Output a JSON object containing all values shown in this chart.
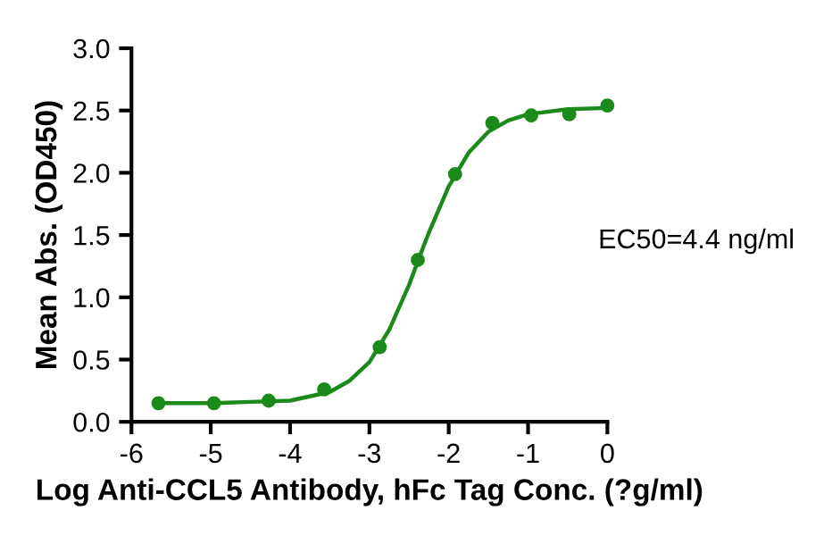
{
  "chart_data": {
    "type": "scatter",
    "xlabel": "Log Anti-CCL5 Antibody, hFc Tag Conc. (?g/ml)",
    "ylabel": "Mean Abs. (OD450)",
    "annotations": [
      "EC50=4.4 ng/ml"
    ],
    "series": [
      {
        "color": "#1b8a1b",
        "marker": "circle",
        "x": [
          -5.66,
          -4.96,
          -4.27,
          -3.57,
          -2.87,
          -2.39,
          -1.92,
          -1.45,
          -0.96,
          -0.48,
          0
        ],
        "values": [
          0.15,
          0.15,
          0.17,
          0.26,
          0.6,
          1.3,
          1.99,
          2.4,
          2.46,
          2.47,
          2.54
        ]
      },
      {
        "type": "line",
        "color": "#1b8a1b",
        "line_style": "solid",
        "x": [
          -5.66,
          -5,
          -4.5,
          -4,
          -3.5,
          -3.25,
          -3,
          -2.75,
          -2.5,
          -2.36,
          -2.25,
          -2,
          -1.75,
          -1.5,
          -1.25,
          -1,
          -0.5,
          0
        ],
        "values": [
          0.15,
          0.15,
          0.16,
          0.17,
          0.24,
          0.33,
          0.48,
          0.74,
          1.1,
          1.34,
          1.52,
          1.89,
          2.16,
          2.33,
          2.42,
          2.47,
          2.51,
          2.52
        ]
      }
    ],
    "xlim": [
      -6,
      0
    ],
    "xticks": [
      -6,
      -5,
      -4,
      -3,
      -2,
      -1,
      0
    ],
    "ylim": [
      0,
      3
    ],
    "yticks": [
      {
        "value": 0,
        "label": "0.0"
      },
      {
        "value": 0.5,
        "label": "0.5"
      },
      {
        "value": 1,
        "label": "1.0"
      },
      {
        "value": 1.5,
        "label": "1.5"
      },
      {
        "value": 2,
        "label": "2.0"
      },
      {
        "value": 2.5,
        "label": "2.5"
      },
      {
        "value": 3,
        "label": "3.0"
      }
    ],
    "grid": false,
    "legend": false
  }
}
